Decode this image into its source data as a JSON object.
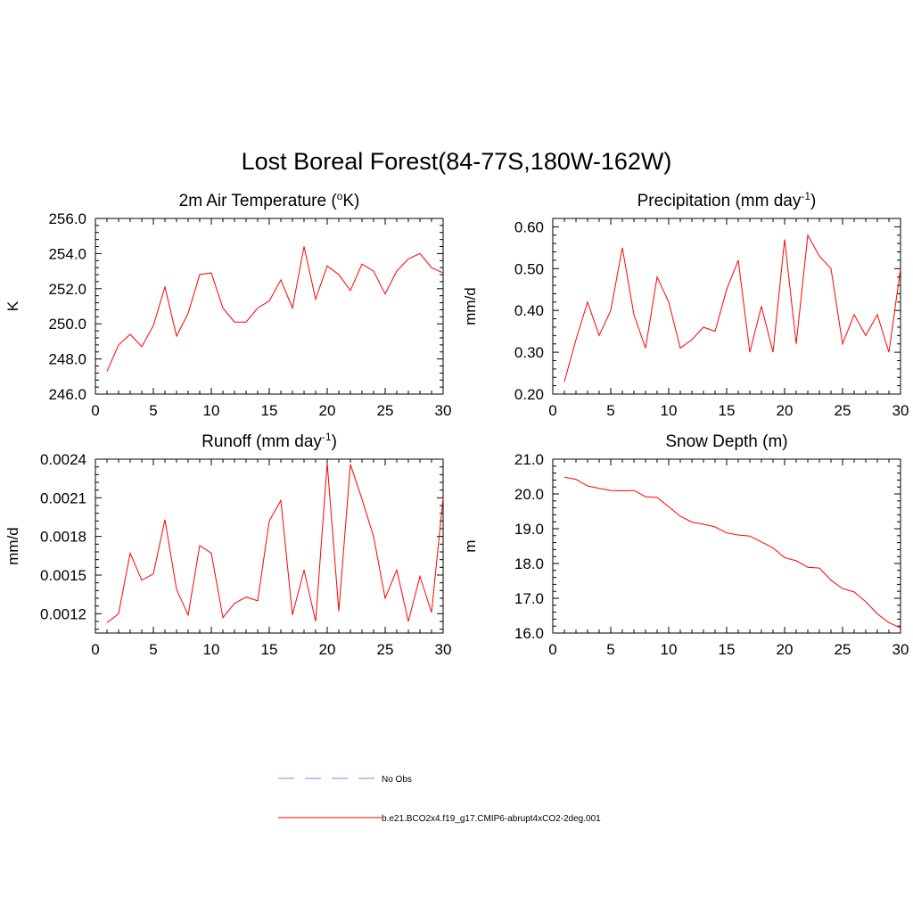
{
  "title": "Lost Boreal Forest(84-77S,180W-162W)",
  "legend": [
    {
      "label": "No Obs",
      "color": "#9999ff",
      "style": "dashed"
    },
    {
      "label": "b.e21.BCO2x4.f19_g17.CMIP6-abrupt4xCO2-2deg.001",
      "color": "#ff0000",
      "style": "solid"
    }
  ],
  "chart_data": [
    {
      "type": "line",
      "title": "2m Air Temperature (",
      "title_sup": "o",
      "title_tail": "K)",
      "xlabel": "",
      "ylabel": "K",
      "xlim": [
        0,
        30
      ],
      "ylim": [
        246.0,
        256.0
      ],
      "xticks": [
        0,
        5,
        10,
        15,
        20,
        25,
        30
      ],
      "yticks": [
        "246.0",
        "248.0",
        "250.0",
        "252.0",
        "254.0",
        "256.0"
      ],
      "color": "#ff0000",
      "x": [
        1,
        2,
        3,
        4,
        5,
        6,
        7,
        8,
        9,
        10,
        11,
        12,
        13,
        14,
        15,
        16,
        17,
        18,
        19,
        20,
        21,
        22,
        23,
        24,
        25,
        26,
        27,
        28,
        29,
        30
      ],
      "values": [
        247.3,
        248.8,
        249.4,
        248.7,
        249.9,
        252.1,
        249.3,
        250.6,
        252.8,
        252.9,
        250.9,
        250.1,
        250.1,
        250.9,
        251.3,
        252.5,
        250.9,
        254.4,
        251.4,
        253.3,
        252.8,
        251.9,
        253.4,
        253.0,
        251.7,
        253.0,
        253.7,
        254.0,
        253.2,
        252.9
      ]
    },
    {
      "type": "line",
      "title": "Precipitation (mm day",
      "title_sup": "-1",
      "title_tail": ")",
      "xlabel": "",
      "ylabel": "mm/d",
      "xlim": [
        0,
        30
      ],
      "ylim": [
        0.2,
        0.62
      ],
      "xticks": [
        0,
        5,
        10,
        15,
        20,
        25,
        30
      ],
      "yticks": [
        "0.20",
        "0.30",
        "0.40",
        "0.50",
        "0.60"
      ],
      "color": "#ff0000",
      "x": [
        1,
        2,
        3,
        4,
        5,
        6,
        7,
        8,
        9,
        10,
        11,
        12,
        13,
        14,
        15,
        16,
        17,
        18,
        19,
        20,
        21,
        22,
        23,
        24,
        25,
        26,
        27,
        28,
        29,
        30
      ],
      "values": [
        0.23,
        0.33,
        0.42,
        0.34,
        0.4,
        0.55,
        0.39,
        0.31,
        0.48,
        0.42,
        0.31,
        0.33,
        0.36,
        0.35,
        0.45,
        0.52,
        0.3,
        0.41,
        0.3,
        0.57,
        0.32,
        0.58,
        0.53,
        0.5,
        0.32,
        0.39,
        0.34,
        0.39,
        0.3,
        0.5
      ]
    },
    {
      "type": "line",
      "title": "Runoff (mm day",
      "title_sup": "-1",
      "title_tail": ")",
      "xlabel": "",
      "ylabel": "mm/d",
      "xlim": [
        0,
        30
      ],
      "ylim": [
        0.00105,
        0.0024
      ],
      "xticks": [
        0,
        5,
        10,
        15,
        20,
        25,
        30
      ],
      "yticks": [
        "0.0012",
        "0.0015",
        "0.0018",
        "0.0021",
        "0.0024"
      ],
      "color": "#ff0000",
      "x": [
        1,
        2,
        3,
        4,
        5,
        6,
        7,
        8,
        9,
        10,
        11,
        12,
        13,
        14,
        15,
        16,
        17,
        18,
        19,
        20,
        21,
        22,
        23,
        24,
        25,
        26,
        27,
        28,
        29,
        30
      ],
      "values": [
        0.00113,
        0.0012,
        0.00167,
        0.00146,
        0.00151,
        0.00193,
        0.00139,
        0.00119,
        0.00173,
        0.00167,
        0.00117,
        0.00128,
        0.00133,
        0.0013,
        0.00192,
        0.00208,
        0.00119,
        0.00154,
        0.00114,
        0.00237,
        0.00122,
        0.00236,
        0.00209,
        0.0018,
        0.00132,
        0.00154,
        0.00114,
        0.00149,
        0.00121,
        0.0021
      ]
    },
    {
      "type": "line",
      "title": "Snow Depth (m)",
      "title_sup": "",
      "title_tail": "",
      "xlabel": "",
      "ylabel": "m",
      "xlim": [
        0,
        30
      ],
      "ylim": [
        16.0,
        21.0
      ],
      "xticks": [
        0,
        5,
        10,
        15,
        20,
        25,
        30
      ],
      "yticks": [
        "16.0",
        "17.0",
        "18.0",
        "19.0",
        "20.0",
        "21.0"
      ],
      "color": "#ff0000",
      "x": [
        1,
        2,
        3,
        4,
        5,
        6,
        7,
        8,
        9,
        10,
        11,
        12,
        13,
        14,
        15,
        16,
        17,
        18,
        19,
        20,
        21,
        22,
        23,
        24,
        25,
        26,
        27,
        28,
        29,
        30
      ],
      "values": [
        20.48,
        20.42,
        20.23,
        20.16,
        20.1,
        20.09,
        20.1,
        19.92,
        19.9,
        19.63,
        19.36,
        19.19,
        19.13,
        19.05,
        18.88,
        18.82,
        18.79,
        18.62,
        18.45,
        18.17,
        18.08,
        17.89,
        17.87,
        17.52,
        17.28,
        17.18,
        16.9,
        16.55,
        16.3,
        16.15
      ]
    }
  ]
}
